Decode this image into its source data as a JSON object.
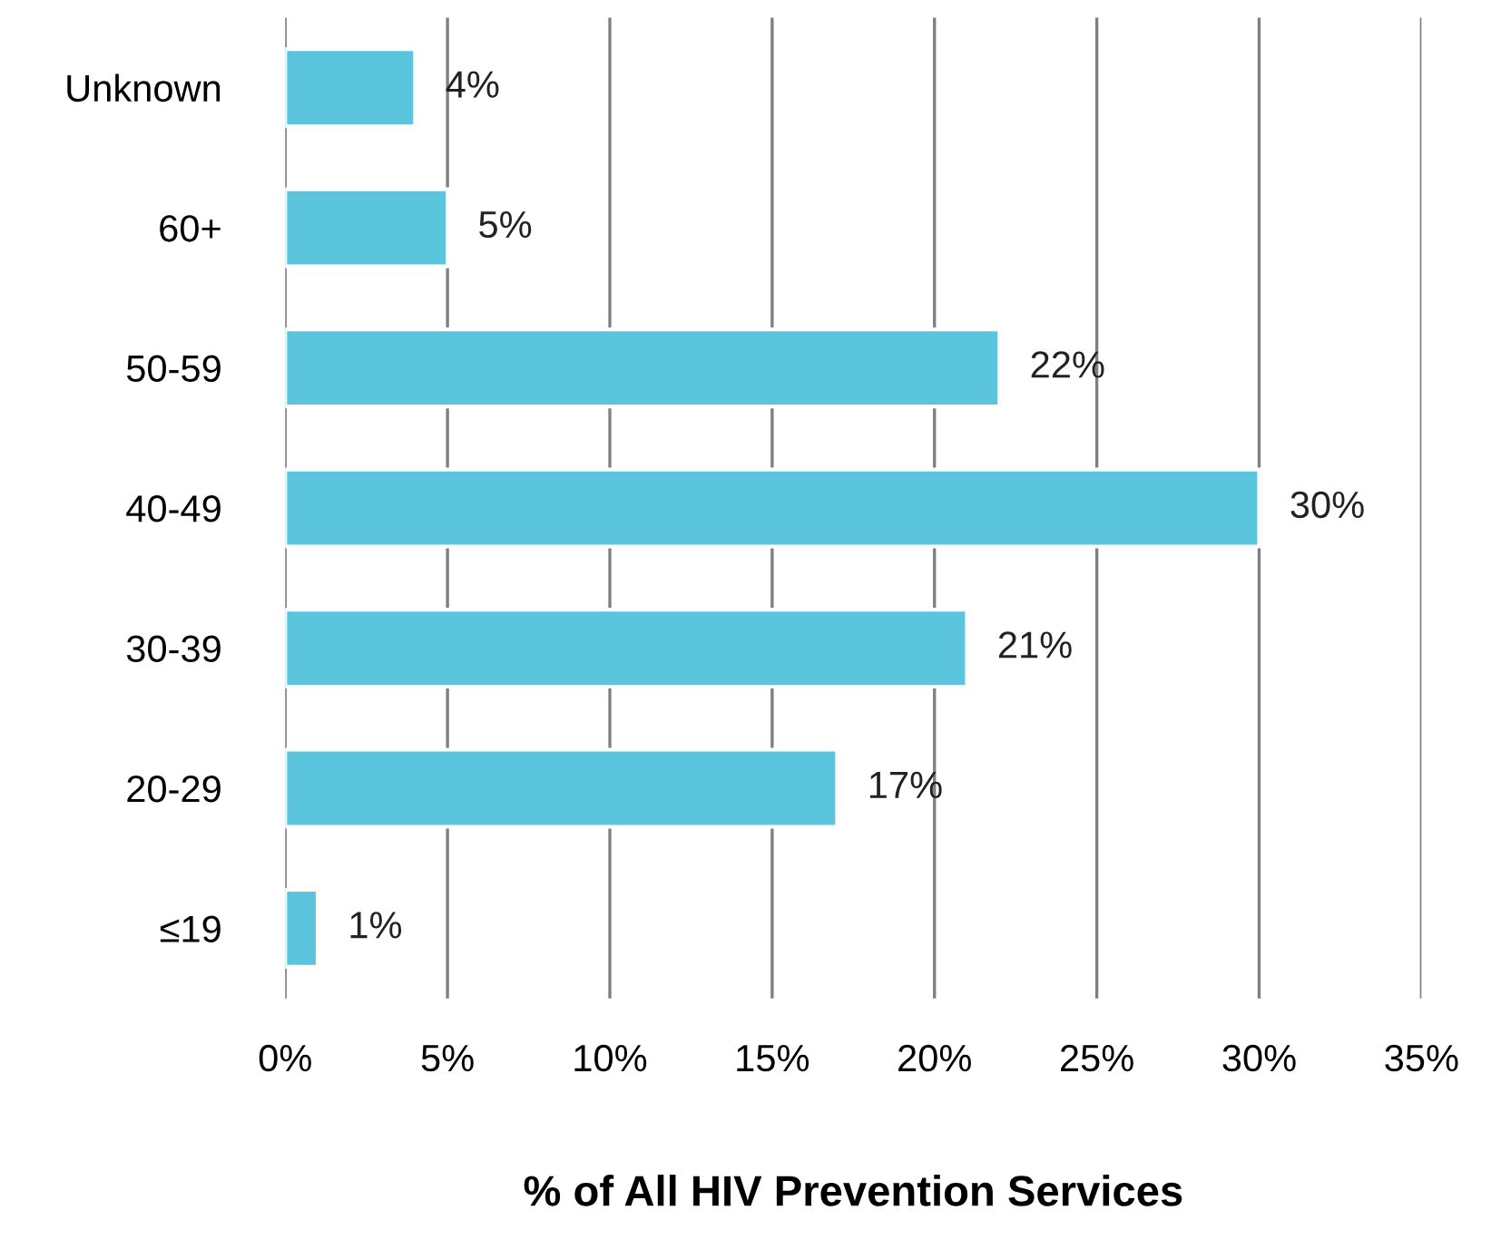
{
  "chart_data": {
    "type": "bar",
    "orientation": "horizontal",
    "xlabel": "% of All HIV Prevention Services",
    "categories": [
      "Unknown",
      "60+",
      "50-59",
      "40-49",
      "30-39",
      "20-29",
      "≤19"
    ],
    "values": [
      4,
      5,
      22,
      30,
      21,
      17,
      1
    ],
    "value_labels": [
      "4%",
      "5%",
      "22%",
      "30%",
      "21%",
      "17%",
      "1%"
    ],
    "color": "#5bc5de",
    "xlim": [
      0,
      35
    ],
    "xticks": [
      {
        "value": 0,
        "label": "0%"
      },
      {
        "value": 5,
        "label": "5%"
      },
      {
        "value": 10,
        "label": "10%"
      },
      {
        "value": 15,
        "label": "15%"
      },
      {
        "value": 20,
        "label": "20%"
      },
      {
        "value": 25,
        "label": "25%"
      },
      {
        "value": 30,
        "label": "30%"
      },
      {
        "value": 35,
        "label": "35%"
      }
    ],
    "grid": "x",
    "legend": false
  }
}
